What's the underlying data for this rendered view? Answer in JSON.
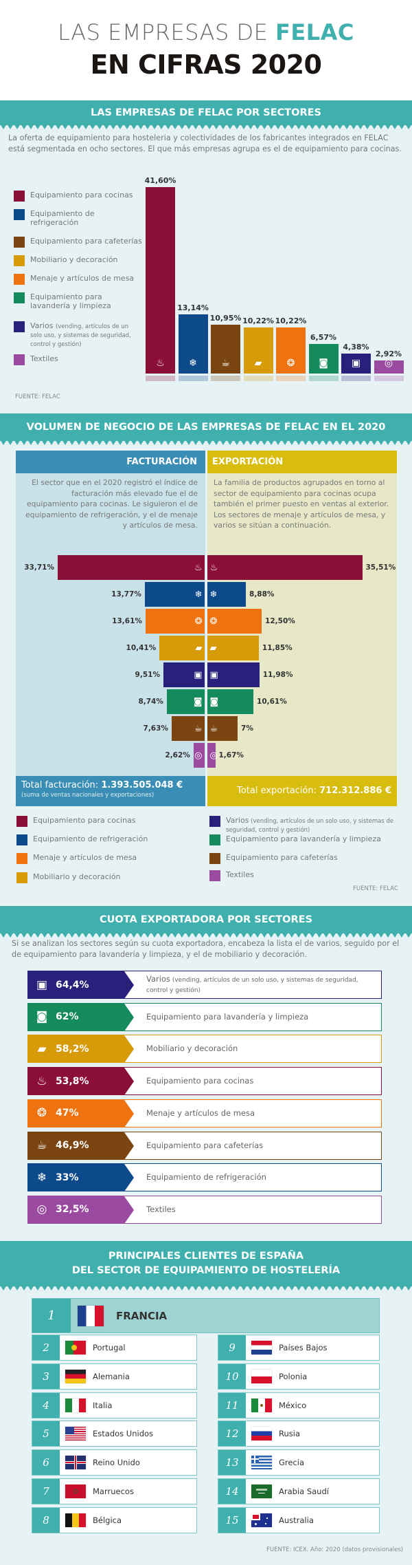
{
  "header": {
    "title_light": "LAS EMPRESAS DE",
    "title_accent": "FELAC",
    "title_bold": "EN CIFRAS 2020",
    "accent_color": "#3fb0ad"
  },
  "sectors": {
    "cocinas": {
      "label": "Equipamiento para cocinas",
      "color": "#8a0e35",
      "icon": "kitchen-icon"
    },
    "refrigeracion": {
      "label": "Equipamiento de refrigeración",
      "legend_label": "Equipamiento de\nrefrigeración",
      "color": "#0d4a8c",
      "icon": "fridge-icon"
    },
    "cafeterias": {
      "label": "Equipamiento para cafeterías",
      "color": "#7a4510",
      "icon": "coffee-machine-icon"
    },
    "mobiliario": {
      "label": "Mobiliario y decoración",
      "color": "#d79a08",
      "icon": "sofa-icon"
    },
    "menaje": {
      "label": "Menaje y artículos de mesa",
      "color": "#ee7310",
      "icon": "tableware-icon"
    },
    "lavanderia": {
      "label": "Equipamiento para lavandería y limpieza",
      "legend_label": "Equipamiento para\nlavandería y limpieza",
      "color": "#158a5c",
      "icon": "washing-machine-icon"
    },
    "varios": {
      "label_main": "Varios",
      "label_detail": "(vending, artículos de un solo uso, y sistemas de seguridad, control y gestión)",
      "legend_detail": "(vending, artículos de un\nsolo uso, y sistemas de seguridad,\ncontrol y gestión)",
      "color": "#28207a",
      "icon": "vending-icon"
    },
    "textiles": {
      "label": "Textiles",
      "color": "#9a4ba0",
      "icon": "textile-roll-icon"
    }
  },
  "section1": {
    "title": "LAS EMPRESAS DE FELAC POR SECTORES",
    "intro": "La oferta de equipamiento para hosteleria y colectividades de los fabricantes integrados en FELAC está segmentada en ocho sectores. El que más empresas agrupa es el de equipamiento para cocinas.",
    "source": "FUENTE: FELAC"
  },
  "section2": {
    "title": "VOLUMEN DE NEGOCIO DE LAS EMPRESAS DE FELAC EN EL 2020",
    "left_header": "FACTURACIÓN",
    "right_header": "EXPORTACIÓN",
    "left_text": "El sector que en el 2020 registró el índice de facturación más elevado fue el de equipamiento para cocinas. Le siguieron el de equipamiento de refrigeración, y el de menaje y artículos de mesa.",
    "right_text": "La familia de productos agrupados en torno al sector de equipamiento para cocinas ocupa también el primer puesto en ventas al exterior. Los sectores de menaje y artículos de mesa, y varios se sitúan a continuación.",
    "left_color": "#3a8db5",
    "right_color": "#d9bd0e",
    "total_fact_label": "Total facturación:",
    "total_fact_value": "1.393.505.048 €",
    "total_fact_note": "(suma de ventas nacionales y exportaciones)",
    "total_exp_label": "Total exportación:",
    "total_exp_value": "712.312.886 €",
    "source": "FUENTE: FELAC"
  },
  "section3": {
    "title": "CUOTA EXPORTADORA POR SECTORES",
    "intro": "Si se analizan los sectores según su cuota exportadora, encabeza la lista el de varios, seguido por el de equipamiento para lavandería y limpieza, y el de mobiliario y decoración."
  },
  "section4": {
    "title_line1": "PRINCIPALES CLIENTES DE ESPAÑA",
    "title_line2": "DEL SECTOR DE EQUIPAMIENTO DE HOSTELERÍA",
    "top": {
      "rank": "1",
      "name": "FRANCIA",
      "flag": "france-flag"
    },
    "countries": [
      {
        "rank": "2",
        "name": "Portugal",
        "flag": "portugal-flag"
      },
      {
        "rank": "3",
        "name": "Alemania",
        "flag": "germany-flag"
      },
      {
        "rank": "4",
        "name": "Italia",
        "flag": "italy-flag"
      },
      {
        "rank": "5",
        "name": "Estados Unidos",
        "flag": "usa-flag"
      },
      {
        "rank": "6",
        "name": "Reino Unido",
        "flag": "uk-flag"
      },
      {
        "rank": "7",
        "name": "Marruecos",
        "flag": "morocco-flag"
      },
      {
        "rank": "8",
        "name": "Bélgica",
        "flag": "belgium-flag"
      },
      {
        "rank": "9",
        "name": "Países Bajos",
        "flag": "netherlands-flag"
      },
      {
        "rank": "10",
        "name": "Polonia",
        "flag": "poland-flag"
      },
      {
        "rank": "11",
        "name": "México",
        "flag": "mexico-flag"
      },
      {
        "rank": "12",
        "name": "Rusia",
        "flag": "russia-flag"
      },
      {
        "rank": "13",
        "name": "Grecia",
        "flag": "greece-flag"
      },
      {
        "rank": "14",
        "name": "Arabia Saudí",
        "flag": "saudi-flag"
      },
      {
        "rank": "15",
        "name": "Australia",
        "flag": "australia-flag"
      }
    ],
    "source": "FUENTE: ICEX. Año: 2020 (datos provisionales)"
  },
  "chart_data": [
    {
      "type": "bar",
      "title": "LAS EMPRESAS DE FELAC POR SECTORES",
      "categories": [
        "Equipamiento para cocinas",
        "Equipamiento de refrigeración",
        "Equipamiento para cafeterías",
        "Mobiliario y decoración",
        "Menaje y artículos de mesa",
        "Equipamiento para lavandería y limpieza",
        "Varios",
        "Textiles"
      ],
      "keys": [
        "cocinas",
        "refrigeracion",
        "cafeterias",
        "mobiliario",
        "menaje",
        "lavanderia",
        "varios",
        "textiles"
      ],
      "values": [
        41.6,
        13.14,
        10.95,
        10.22,
        10.22,
        6.57,
        4.38,
        2.92
      ],
      "labels": [
        "41,60%",
        "13,14%",
        "10,95%",
        "10,22%",
        "10,22%",
        "6,57%",
        "4,38%",
        "2,92%"
      ],
      "unit": "%",
      "legend": "left"
    },
    {
      "type": "bar",
      "title": "VOLUMEN DE NEGOCIO DE LAS EMPRESAS DE FELAC EN EL 2020",
      "orientation": "horizontal-butterfly",
      "keys": [
        "cocinas",
        "refrigeracion",
        "menaje",
        "mobiliario",
        "varios",
        "lavanderia",
        "cafeterias",
        "textiles"
      ],
      "series": [
        {
          "name": "FACTURACIÓN",
          "values": [
            33.71,
            13.77,
            13.61,
            10.41,
            9.51,
            8.74,
            7.63,
            2.62
          ],
          "labels": [
            "33,71%",
            "13,77%",
            "13,61%",
            "10,41%",
            "9,51%",
            "8,74%",
            "7,63%",
            "2,62%"
          ]
        },
        {
          "name": "EXPORTACIÓN",
          "values": [
            35.51,
            8.88,
            12.5,
            11.85,
            11.98,
            10.61,
            7,
            1.67
          ],
          "labels": [
            "35,51%",
            "8,88%",
            "12,50%",
            "11,85%",
            "11,98%",
            "10,61%",
            "7%",
            "1,67%"
          ]
        }
      ],
      "unit": "%",
      "legend": "bottom",
      "legend_order": [
        "cocinas",
        "refrigeracion",
        "menaje",
        "mobiliario",
        "varios",
        "lavanderia",
        "cafeterias",
        "textiles"
      ]
    },
    {
      "type": "table",
      "title": "CUOTA EXPORTADORA POR SECTORES",
      "keys": [
        "varios",
        "lavanderia",
        "mobiliario",
        "cocinas",
        "menaje",
        "cafeterias",
        "refrigeracion",
        "textiles"
      ],
      "values": [
        64.4,
        62,
        58.2,
        53.8,
        47,
        46.9,
        33,
        32.5
      ],
      "labels": [
        "64,4%",
        "62%",
        "58,2%",
        "53,8%",
        "47%",
        "46,9%",
        "33%",
        "32,5%"
      ],
      "unit": "%"
    }
  ]
}
